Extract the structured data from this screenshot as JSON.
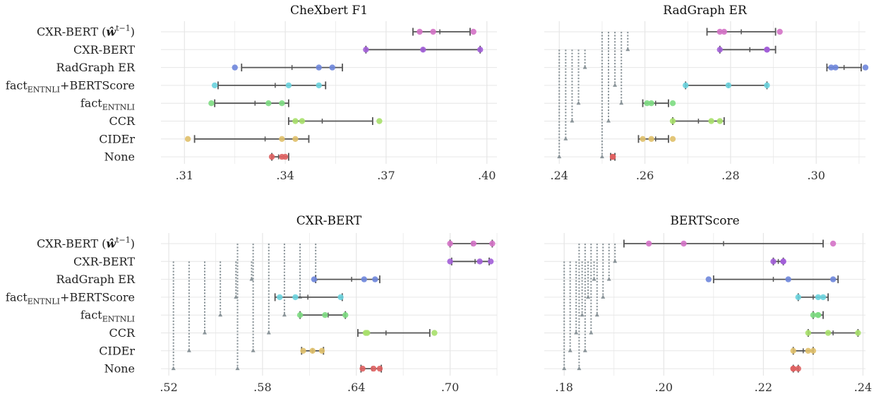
{
  "colors": {
    "CXR-BERT (w^{t-1})": "#d472c7",
    "CXR-BERT": "#a25ed8",
    "RadGraph ER": "#6e86db",
    "factENTNLI+BERTScore": "#6ad3de",
    "factENTNLI": "#7ddc82",
    "CCR": "#a7e06a",
    "CIDEr": "#e0c06a",
    "None": "#df6262",
    "bar": "#555555",
    "dotted": "#8a9499",
    "grid": "#e6e6e6"
  },
  "rows": [
    {
      "key": "cxrbert_w",
      "text": "CXR-BERT (",
      "math": "ŵ",
      "sup": "t−1",
      "close": ")"
    },
    {
      "key": "cxrbert",
      "text": "CXR-BERT"
    },
    {
      "key": "radgraph",
      "text": "RadGraph ER"
    },
    {
      "key": "factbert",
      "pre": "fact",
      "sub": "ENTNLI",
      "post": "+BERTScore"
    },
    {
      "key": "fact",
      "pre": "fact",
      "sub": "ENTNLI"
    },
    {
      "key": "ccr",
      "text": "CCR"
    },
    {
      "key": "cider",
      "text": "CIDEr"
    },
    {
      "key": "none",
      "text": "None"
    }
  ],
  "chart_data": [
    {
      "type": "scatter",
      "title": "CheXbert F1",
      "xlim": [
        0.303,
        0.403
      ],
      "xticks": [
        0.31,
        0.34,
        0.37,
        0.4
      ],
      "xticklabels": [
        ".31",
        ".34",
        ".37",
        ".40"
      ],
      "show_ylabels": true,
      "series": [
        {
          "category": "CXR-BERT (w^{t-1})",
          "points": [
            0.38,
            0.384,
            0.396
          ],
          "ci": [
            0.378,
            0.386,
            0.395
          ]
        },
        {
          "category": "CXR-BERT",
          "points": [
            0.364,
            0.381,
            0.398
          ],
          "ci": [
            0.364,
            0.381,
            0.398
          ]
        },
        {
          "category": "RadGraph ER",
          "points": [
            0.325,
            0.35,
            0.354
          ],
          "ci": [
            0.327,
            0.342,
            0.357
          ]
        },
        {
          "category": "factENTNLI+BERTScore",
          "points": [
            0.319,
            0.341,
            0.35
          ],
          "ci": [
            0.32,
            0.337,
            0.352
          ]
        },
        {
          "category": "factENTNLI",
          "points": [
            0.318,
            0.335,
            0.339
          ],
          "ci": [
            0.319,
            0.331,
            0.341
          ]
        },
        {
          "category": "CCR",
          "points": [
            0.343,
            0.345,
            0.368
          ],
          "ci": [
            0.341,
            0.351,
            0.366
          ]
        },
        {
          "category": "CIDEr",
          "points": [
            0.311,
            0.339,
            0.343
          ],
          "ci": [
            0.313,
            0.334,
            0.347
          ]
        },
        {
          "category": "None",
          "points": [
            0.336,
            0.339,
            0.34
          ],
          "ci": [
            0.336,
            0.338,
            0.341
          ]
        }
      ],
      "dotted": []
    },
    {
      "type": "scatter",
      "title": "RadGraph ER",
      "xlim": [
        0.2365,
        0.3115
      ],
      "xticks": [
        0.24,
        0.26,
        0.28,
        0.3
      ],
      "xticklabels": [
        ".24",
        ".26",
        ".28",
        ".30"
      ],
      "show_ylabels": false,
      "series": [
        {
          "category": "CXR-BERT (w^{t-1})",
          "points": [
            0.2775,
            0.2785,
            0.2915
          ],
          "ci": [
            0.2745,
            0.2825,
            0.2905
          ]
        },
        {
          "category": "CXR-BERT",
          "points": [
            0.2775,
            0.2885,
            0.2885
          ],
          "ci": [
            0.2775,
            0.2845,
            0.2905
          ]
        },
        {
          "category": "RadGraph ER",
          "points": [
            0.3035,
            0.3045,
            0.3115
          ],
          "ci": [
            0.3025,
            0.3065,
            0.3105
          ]
        },
        {
          "category": "factENTNLI+BERTScore",
          "points": [
            0.2695,
            0.2795,
            0.2885
          ],
          "ci": [
            0.2695,
            0.2795,
            0.2885
          ]
        },
        {
          "category": "factENTNLI",
          "points": [
            0.2605,
            0.2615,
            0.2665
          ],
          "ci": [
            0.2595,
            0.2625,
            0.2655
          ]
        },
        {
          "category": "CCR",
          "points": [
            0.2665,
            0.2755,
            0.2775
          ],
          "ci": [
            0.2665,
            0.2725,
            0.2785
          ]
        },
        {
          "category": "CIDEr",
          "points": [
            0.2595,
            0.2615,
            0.2665
          ],
          "ci": [
            0.2585,
            0.2625,
            0.2655
          ]
        },
        {
          "category": "None",
          "points": [
            0.2525,
            0.2525,
            0.2525
          ],
          "ci": [
            0.252,
            0.2525,
            0.253
          ]
        }
      ],
      "dotted": [
        {
          "x": 0.24,
          "top": 1,
          "bottom": 7
        },
        {
          "x": 0.2415,
          "top": 1,
          "bottom": 6
        },
        {
          "x": 0.243,
          "top": 1,
          "bottom": 5
        },
        {
          "x": 0.2445,
          "top": 1,
          "bottom": 4
        },
        {
          "x": 0.246,
          "top": 1,
          "bottom": 2
        },
        {
          "x": 0.25,
          "top": 0,
          "bottom": 7
        },
        {
          "x": 0.2515,
          "top": 0,
          "bottom": 5
        },
        {
          "x": 0.253,
          "top": 0,
          "bottom": 3
        },
        {
          "x": 0.2545,
          "top": 0,
          "bottom": 4
        },
        {
          "x": 0.256,
          "top": 0,
          "bottom": 1
        }
      ]
    },
    {
      "type": "scatter",
      "title": "CXR-BERT",
      "xlim": [
        0.515,
        0.73
      ],
      "xticks": [
        0.52,
        0.58,
        0.64,
        0.7
      ],
      "xticklabels": [
        ".52",
        ".58",
        ".64",
        ".70"
      ],
      "show_ylabels": true,
      "series": [
        {
          "category": "CXR-BERT (w^{t-1})",
          "points": [
            0.7,
            0.715,
            0.727
          ],
          "ci": [
            0.7,
            0.714,
            0.727
          ]
        },
        {
          "category": "CXR-BERT",
          "points": [
            0.7,
            0.719,
            0.726
          ],
          "ci": [
            0.701,
            0.716,
            0.725
          ]
        },
        {
          "category": "RadGraph ER",
          "points": [
            0.613,
            0.645,
            0.652
          ],
          "ci": [
            0.614,
            0.637,
            0.655
          ]
        },
        {
          "category": "factENTNLI+BERTScore",
          "points": [
            0.591,
            0.601,
            0.63
          ],
          "ci": [
            0.588,
            0.609,
            0.631
          ]
        },
        {
          "category": "factENTNLI",
          "points": [
            0.604,
            0.62,
            0.633
          ],
          "ci": [
            0.604,
            0.622,
            0.633
          ]
        },
        {
          "category": "CCR",
          "points": [
            0.646,
            0.647,
            0.69
          ],
          "ci": [
            0.641,
            0.659,
            0.687
          ]
        },
        {
          "category": "CIDEr",
          "points": [
            0.606,
            0.612,
            0.618
          ],
          "ci": [
            0.605,
            0.612,
            0.619
          ]
        },
        {
          "category": "None",
          "points": [
            0.644,
            0.651,
            0.655
          ],
          "ci": [
            0.643,
            0.65,
            0.656
          ]
        }
      ],
      "dotted": [
        {
          "x": 0.523,
          "top": 1,
          "bottom": 7
        },
        {
          "x": 0.533,
          "top": 1,
          "bottom": 6
        },
        {
          "x": 0.543,
          "top": 1,
          "bottom": 5
        },
        {
          "x": 0.553,
          "top": 1,
          "bottom": 4
        },
        {
          "x": 0.563,
          "top": 1,
          "bottom": 3
        },
        {
          "x": 0.573,
          "top": 1,
          "bottom": 2
        },
        {
          "x": 0.564,
          "top": 0,
          "bottom": 7
        },
        {
          "x": 0.574,
          "top": 0,
          "bottom": 6
        },
        {
          "x": 0.584,
          "top": 0,
          "bottom": 5
        },
        {
          "x": 0.594,
          "top": 0,
          "bottom": 4
        },
        {
          "x": 0.604,
          "top": 0,
          "bottom": 3
        },
        {
          "x": 0.614,
          "top": 0,
          "bottom": 2
        }
      ]
    },
    {
      "type": "scatter",
      "title": "BERTScore",
      "xlim": [
        0.176,
        0.2405
      ],
      "xticks": [
        0.18,
        0.2,
        0.22,
        0.24
      ],
      "xticklabels": [
        ".18",
        ".20",
        ".22",
        ".24"
      ],
      "show_ylabels": false,
      "series": [
        {
          "category": "CXR-BERT (w^{t-1})",
          "points": [
            0.197,
            0.204,
            0.234
          ],
          "ci": [
            0.192,
            0.212,
            0.232
          ]
        },
        {
          "category": "CXR-BERT",
          "points": [
            0.222,
            0.224,
            0.224
          ],
          "ci": [
            0.222,
            0.223,
            0.224
          ]
        },
        {
          "category": "RadGraph ER",
          "points": [
            0.209,
            0.225,
            0.234
          ],
          "ci": [
            0.21,
            0.222,
            0.235
          ]
        },
        {
          "category": "factENTNLI+BERTScore",
          "points": [
            0.227,
            0.231,
            0.232
          ],
          "ci": [
            0.227,
            0.23,
            0.233
          ]
        },
        {
          "category": "factENTNLI",
          "points": [
            0.23,
            0.231,
            0.231
          ],
          "ci": [
            0.23,
            0.231,
            0.232
          ]
        },
        {
          "category": "CCR",
          "points": [
            0.229,
            0.233,
            0.239
          ],
          "ci": [
            0.229,
            0.234,
            0.239
          ]
        },
        {
          "category": "CIDEr",
          "points": [
            0.226,
            0.229,
            0.23
          ],
          "ci": [
            0.226,
            0.228,
            0.23
          ]
        },
        {
          "category": "None",
          "points": [
            0.226,
            0.226,
            0.227
          ],
          "ci": [
            0.226,
            0.226,
            0.227
          ]
        }
      ],
      "dotted": [
        {
          "x": 0.18,
          "top": 1,
          "bottom": 7
        },
        {
          "x": 0.1812,
          "top": 1,
          "bottom": 6
        },
        {
          "x": 0.1824,
          "top": 1,
          "bottom": 5
        },
        {
          "x": 0.1836,
          "top": 1,
          "bottom": 4
        },
        {
          "x": 0.1848,
          "top": 1,
          "bottom": 3
        },
        {
          "x": 0.186,
          "top": 1,
          "bottom": 2
        },
        {
          "x": 0.183,
          "top": 0,
          "bottom": 7
        },
        {
          "x": 0.1842,
          "top": 0,
          "bottom": 6
        },
        {
          "x": 0.1854,
          "top": 0,
          "bottom": 5
        },
        {
          "x": 0.1866,
          "top": 0,
          "bottom": 4
        },
        {
          "x": 0.1878,
          "top": 0,
          "bottom": 3
        },
        {
          "x": 0.189,
          "top": 0,
          "bottom": 2
        },
        {
          "x": 0.1902,
          "top": 0,
          "bottom": 1
        }
      ]
    }
  ]
}
